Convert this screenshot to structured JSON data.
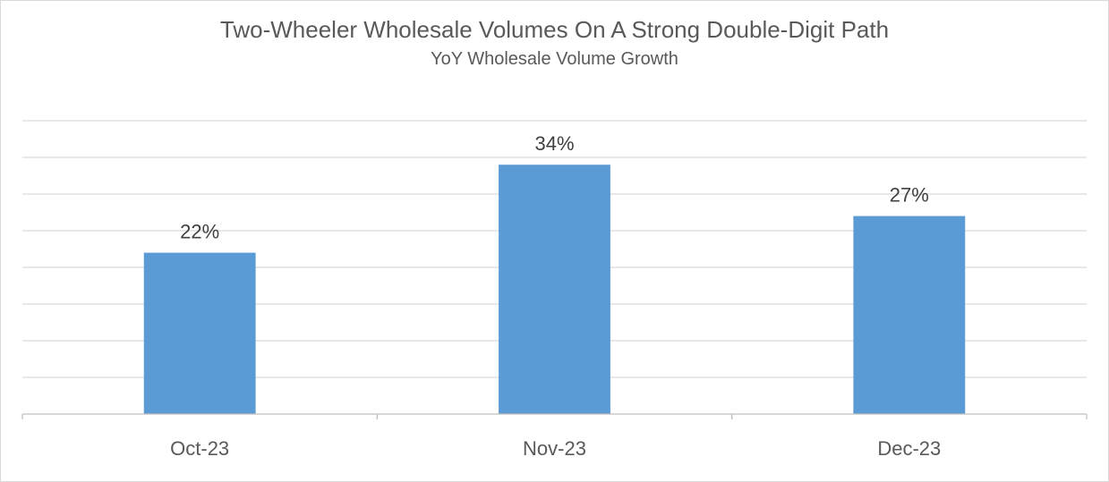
{
  "chart_data": {
    "type": "bar",
    "title": "Two-Wheeler Wholesale Volumes On A Strong Double-Digit Path",
    "subtitle": "YoY Wholesale Volume Growth",
    "categories": [
      "Oct-23",
      "Nov-23",
      "Dec-23"
    ],
    "values": [
      22,
      34,
      27
    ],
    "data_labels": [
      "22%",
      "34%",
      "27%"
    ],
    "ylim": [
      0,
      40
    ],
    "grid": true,
    "legend": false,
    "colors": {
      "bar": "#5b9bd5",
      "grid": "#d9d9d9",
      "axis": "#bfbfbf"
    }
  }
}
